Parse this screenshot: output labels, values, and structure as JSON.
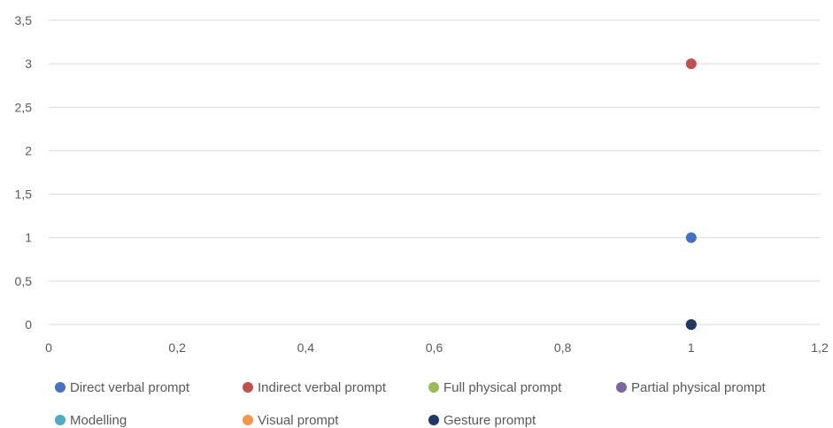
{
  "chart_data": {
    "type": "scatter",
    "title": "",
    "xlabel": "",
    "ylabel": "",
    "xlim": [
      0,
      1.2
    ],
    "ylim": [
      0,
      3.5
    ],
    "x_ticks": [
      "0",
      "0,2",
      "0,4",
      "0,6",
      "0,8",
      "1",
      "1,2"
    ],
    "y_ticks": [
      "0",
      "0,5",
      "1",
      "1,5",
      "2",
      "2,5",
      "3",
      "3,5"
    ],
    "grid": "horizontal",
    "legend_position": "bottom",
    "series": [
      {
        "name": "Direct verbal prompt",
        "color": "#4472C4",
        "points": [
          {
            "x": 1,
            "y": 1
          }
        ]
      },
      {
        "name": "Indirect verbal prompt",
        "color": "#C0504D",
        "points": [
          {
            "x": 1,
            "y": 3
          }
        ]
      },
      {
        "name": "Full physical prompt",
        "color": "#9BBB59",
        "points": [
          {
            "x": 1,
            "y": 0
          }
        ]
      },
      {
        "name": "Partial physical prompt",
        "color": "#8064A2",
        "points": [
          {
            "x": 1,
            "y": 0
          }
        ]
      },
      {
        "name": "Modelling",
        "color": "#4BACC6",
        "points": [
          {
            "x": 1,
            "y": 0
          }
        ]
      },
      {
        "name": "Visual prompt",
        "color": "#F79646",
        "points": [
          {
            "x": 1,
            "y": 0
          }
        ]
      },
      {
        "name": "Gesture prompt",
        "color": "#1F3864",
        "points": [
          {
            "x": 1,
            "y": 0
          }
        ]
      }
    ]
  }
}
